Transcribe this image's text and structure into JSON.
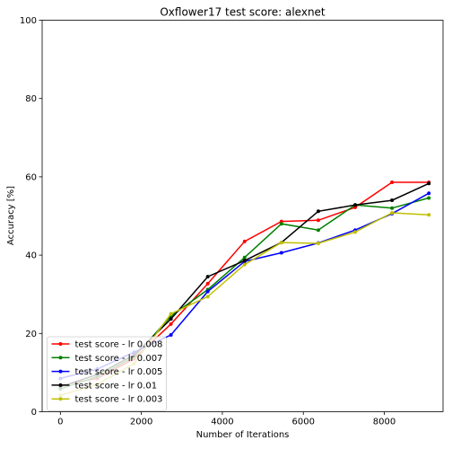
{
  "chart_data": {
    "type": "line",
    "title": "Oxflower17 test score: alexnet",
    "xlabel": "Number of Iterations",
    "ylabel": "Accuracy [%]",
    "xlim": [
      -450,
      9450
    ],
    "ylim": [
      0,
      100
    ],
    "xticks": [
      0,
      2000,
      4000,
      6000,
      8000
    ],
    "yticks": [
      0,
      20,
      40,
      60,
      80,
      100
    ],
    "grid": false,
    "legend_position": "lower-left",
    "x": [
      0,
      910,
      1820,
      2730,
      3640,
      4550,
      5460,
      6370,
      7280,
      8190,
      9100
    ],
    "series": [
      {
        "name": "test score - lr 0.008",
        "color": "#ff0000",
        "values": [
          6.7,
          8.5,
          13.5,
          22.4,
          32.7,
          43.5,
          48.6,
          48.9,
          52.2,
          58.6,
          58.6
        ]
      },
      {
        "name": "test score - lr 0.007",
        "color": "#008000",
        "values": [
          5.8,
          9.0,
          14.0,
          24.4,
          31.2,
          39.4,
          48.0,
          46.4,
          52.8,
          52.0,
          54.6
        ]
      },
      {
        "name": "test score - lr 0.005",
        "color": "#0000ff",
        "values": [
          8.5,
          10.9,
          15.2,
          19.6,
          30.7,
          38.4,
          40.6,
          43.1,
          46.4,
          50.6,
          55.8
        ]
      },
      {
        "name": "test score - lr 0.01",
        "color": "#000000",
        "values": [
          6.4,
          9.5,
          14.5,
          23.7,
          34.5,
          38.6,
          43.2,
          51.2,
          52.8,
          54.0,
          58.3
        ]
      },
      {
        "name": "test score - lr 0.003",
        "color": "#bfbf00",
        "values": [
          4.2,
          7.0,
          12.3,
          25.0,
          29.4,
          37.6,
          43.2,
          43.0,
          45.9,
          50.8,
          50.3
        ]
      }
    ]
  }
}
